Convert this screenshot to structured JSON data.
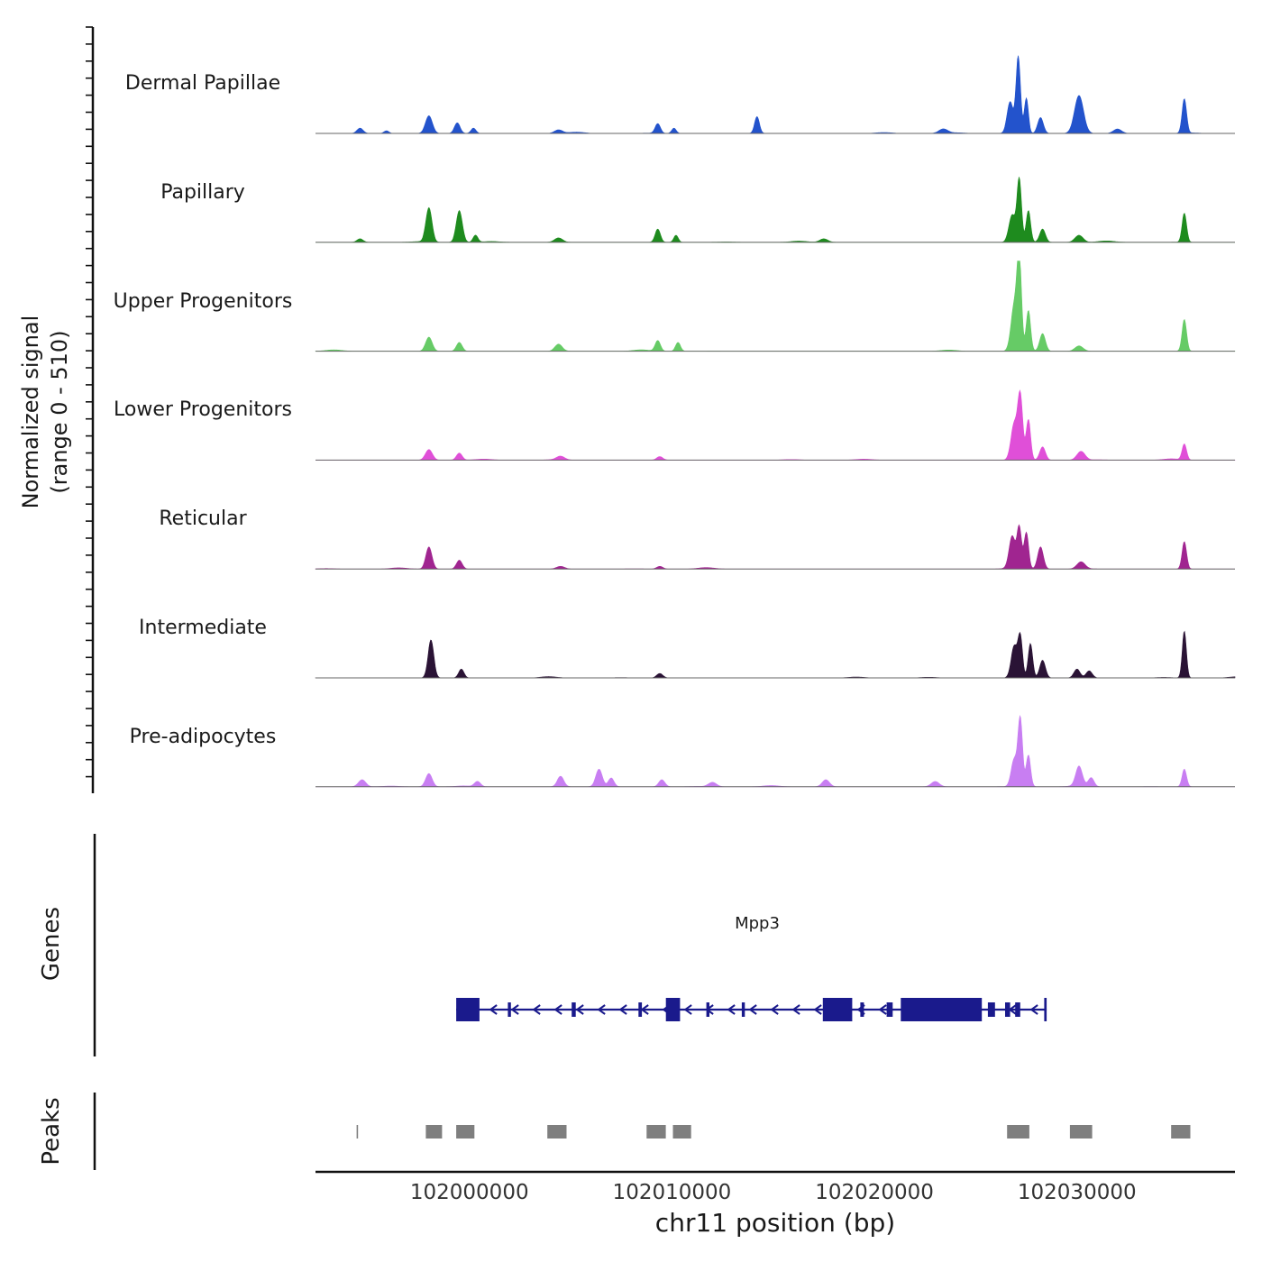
{
  "chart_data": {
    "type": "area",
    "title": "",
    "xlabel": "chr11 position (bp)",
    "ylabel": "Normalized signal (range 0 - 510)",
    "ylabel_lines": [
      "Normalized signal",
      "(range 0 - 510)"
    ],
    "genes_label": "Genes",
    "peaks_label": "Peaks",
    "x_range": [
      101992400,
      102037800
    ],
    "x_ticks": [
      {
        "value": 102000000,
        "label": "102000000"
      },
      {
        "value": 102010000,
        "label": "102010000"
      },
      {
        "value": 102020000,
        "label": "102020000"
      },
      {
        "value": 102030000,
        "label": "102030000"
      }
    ],
    "track_ylim": [
      0,
      510
    ],
    "noise": 8,
    "tracks": [
      {
        "name": "Dermal Papillae",
        "color": "#2353cc",
        "peaks": [
          [
            101994600,
            30,
            150
          ],
          [
            101995900,
            15,
            120
          ],
          [
            101998000,
            100,
            170
          ],
          [
            101999400,
            60,
            140
          ],
          [
            102000200,
            30,
            120
          ],
          [
            102004400,
            20,
            200
          ],
          [
            102009300,
            55,
            130
          ],
          [
            102010100,
            30,
            110
          ],
          [
            102014200,
            95,
            120
          ],
          [
            102023400,
            25,
            220
          ],
          [
            102026700,
            180,
            150
          ],
          [
            102027100,
            435,
            110
          ],
          [
            102027500,
            200,
            100
          ],
          [
            102028200,
            90,
            140
          ],
          [
            102030100,
            215,
            220
          ],
          [
            102032000,
            25,
            200
          ],
          [
            102035300,
            195,
            110
          ]
        ]
      },
      {
        "name": "Papillary",
        "color": "#1e8b1e",
        "peaks": [
          [
            101994600,
            20,
            150
          ],
          [
            101998000,
            195,
            150
          ],
          [
            101999500,
            180,
            150
          ],
          [
            102000300,
            40,
            120
          ],
          [
            102004400,
            25,
            200
          ],
          [
            102009300,
            75,
            130
          ],
          [
            102010200,
            40,
            110
          ],
          [
            102017500,
            20,
            200
          ],
          [
            102026800,
            155,
            160
          ],
          [
            102027150,
            355,
            110
          ],
          [
            102027600,
            180,
            110
          ],
          [
            102028300,
            75,
            140
          ],
          [
            102030100,
            40,
            200
          ],
          [
            102035300,
            165,
            110
          ]
        ]
      },
      {
        "name": "Upper Progenitors",
        "color": "#66cb66",
        "peaks": [
          [
            101998000,
            80,
            160
          ],
          [
            101999500,
            50,
            140
          ],
          [
            102004400,
            40,
            180
          ],
          [
            102009300,
            60,
            130
          ],
          [
            102010300,
            50,
            120
          ],
          [
            102026900,
            255,
            160
          ],
          [
            102027150,
            510,
            110
          ],
          [
            102027600,
            230,
            110
          ],
          [
            102028300,
            100,
            140
          ],
          [
            102030100,
            30,
            200
          ],
          [
            102035300,
            180,
            110
          ]
        ]
      },
      {
        "name": "Lower Progenitors",
        "color": "#e04fd8",
        "peaks": [
          [
            101998000,
            60,
            170
          ],
          [
            101999500,
            40,
            140
          ],
          [
            102004500,
            20,
            200
          ],
          [
            102009400,
            20,
            150
          ],
          [
            102026900,
            205,
            160
          ],
          [
            102027200,
            355,
            120
          ],
          [
            102027600,
            230,
            110
          ],
          [
            102028300,
            75,
            140
          ],
          [
            102030200,
            50,
            200
          ],
          [
            102035300,
            90,
            110
          ]
        ]
      },
      {
        "name": "Reticular",
        "color": "#a02590",
        "peaks": [
          [
            101998000,
            125,
            150
          ],
          [
            101999500,
            50,
            140
          ],
          [
            102004500,
            15,
            200
          ],
          [
            102009400,
            15,
            150
          ],
          [
            102026800,
            180,
            150
          ],
          [
            102027150,
            230,
            110
          ],
          [
            102027500,
            205,
            110
          ],
          [
            102028200,
            125,
            140
          ],
          [
            102030200,
            40,
            200
          ],
          [
            102035300,
            155,
            110
          ]
        ]
      },
      {
        "name": "Intermediate",
        "color": "#2a1335",
        "peaks": [
          [
            101998100,
            215,
            140
          ],
          [
            101999600,
            50,
            130
          ],
          [
            102009400,
            25,
            150
          ],
          [
            102026900,
            180,
            150
          ],
          [
            102027200,
            230,
            110
          ],
          [
            102027700,
            195,
            110
          ],
          [
            102028300,
            100,
            140
          ],
          [
            102030000,
            50,
            150
          ],
          [
            102030600,
            40,
            150
          ],
          [
            102035300,
            265,
            100
          ]
        ]
      },
      {
        "name": "Pre-adipocytes",
        "color": "#c87ef2",
        "peaks": [
          [
            101994700,
            40,
            180
          ],
          [
            101998000,
            75,
            160
          ],
          [
            102000400,
            30,
            150
          ],
          [
            102004500,
            60,
            160
          ],
          [
            102006400,
            100,
            160
          ],
          [
            102007000,
            50,
            140
          ],
          [
            102009500,
            40,
            150
          ],
          [
            102012000,
            25,
            200
          ],
          [
            102017600,
            40,
            180
          ],
          [
            102023000,
            30,
            200
          ],
          [
            102026900,
            155,
            150
          ],
          [
            102027200,
            380,
            110
          ],
          [
            102027600,
            180,
            110
          ],
          [
            102030100,
            110,
            160
          ],
          [
            102030700,
            50,
            140
          ],
          [
            102035300,
            100,
            110
          ]
        ]
      }
    ],
    "genes": [
      {
        "name": "Mpp3",
        "start": 101999350,
        "end": 102028500,
        "strand": "-",
        "color": "#1a1a8c",
        "exons": [
          [
            101999350,
            102000500,
            1
          ],
          [
            102001900,
            102002050,
            0
          ],
          [
            102005050,
            102005250,
            0
          ],
          [
            102008350,
            102008520,
            0
          ],
          [
            102009700,
            102010400,
            1
          ],
          [
            102011700,
            102011850,
            0
          ],
          [
            102013450,
            102013600,
            0
          ],
          [
            102017450,
            102018900,
            1
          ],
          [
            102019300,
            102019480,
            0
          ],
          [
            102020600,
            102020900,
            0
          ],
          [
            102021300,
            102025300,
            1
          ],
          [
            102025600,
            102025950,
            0
          ],
          [
            102026450,
            102026700,
            0
          ],
          [
            102026950,
            102027200,
            0
          ],
          [
            102028380,
            102028500,
            1
          ]
        ]
      }
    ],
    "peak_regions": [
      [
        101994430,
        101994500
      ],
      [
        101997850,
        101998650
      ],
      [
        101999350,
        102000250
      ],
      [
        102003850,
        102004800
      ],
      [
        102008750,
        102009700
      ],
      [
        102010050,
        102010950
      ],
      [
        102026550,
        102027650
      ],
      [
        102029650,
        102030750
      ],
      [
        102034650,
        102035600
      ]
    ],
    "peak_color": "#7f7f7f"
  }
}
